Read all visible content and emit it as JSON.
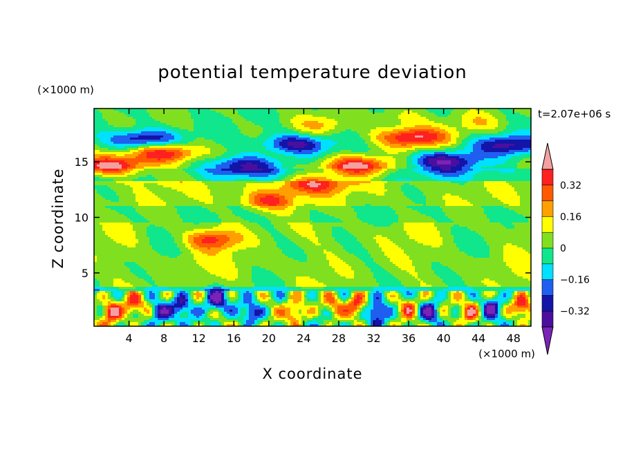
{
  "chart_data": {
    "type": "heatmap",
    "title": "potential temperature deviation",
    "xlabel": "X coordinate",
    "ylabel": "Z coordinate",
    "x_unit": "(×1000 m)",
    "y_unit": "(×1000 m)",
    "time_label": "t=2.07e+06 s",
    "xlim": [
      0,
      50
    ],
    "ylim": [
      0.2,
      19.8
    ],
    "x_ticks": [
      4,
      8,
      12,
      16,
      20,
      24,
      28,
      32,
      36,
      40,
      44,
      48
    ],
    "y_ticks": [
      5,
      10,
      15
    ],
    "colorbar": {
      "levels": [
        -0.4,
        -0.32,
        -0.24,
        -0.16,
        -0.08,
        0,
        0.08,
        0.16,
        0.24,
        0.32,
        0.4
      ],
      "tick_labels": [
        "0.32",
        "0.16",
        "0",
        "−0.16",
        "−0.32"
      ],
      "tick_values": [
        0.32,
        0.16,
        0,
        -0.16,
        -0.32
      ],
      "colors": [
        "#7b22b8",
        "#4a0f9e",
        "#1414a8",
        "#1e5ff0",
        "#00e0ff",
        "#10e68c",
        "#80e020",
        "#ffff00",
        "#ffa000",
        "#ff5a00",
        "#ff2020",
        "#f4a0a0"
      ],
      "extend": "both"
    },
    "features": [
      {
        "x": 5.5,
        "z": 17.0,
        "v": -0.36
      },
      {
        "x": 8.0,
        "z": 15.8,
        "v": 0.42
      },
      {
        "x": 2.0,
        "z": 14.6,
        "v": 0.42
      },
      {
        "x": 17.0,
        "z": 14.6,
        "v": -0.36
      },
      {
        "x": 23.0,
        "z": 16.6,
        "v": -0.33
      },
      {
        "x": 36.5,
        "z": 17.2,
        "v": 0.42
      },
      {
        "x": 40.0,
        "z": 15.0,
        "v": -0.38
      },
      {
        "x": 30.0,
        "z": 14.6,
        "v": 0.42
      },
      {
        "x": 47.5,
        "z": 16.5,
        "v": -0.34
      },
      {
        "x": 26.0,
        "z": 18.3,
        "v": 0.16
      },
      {
        "x": 44.0,
        "z": 18.5,
        "v": 0.12
      },
      {
        "x": 35.0,
        "z": 19.0,
        "v": 0.12
      },
      {
        "x": 8.0,
        "z": 13.5,
        "v": 0.1
      },
      {
        "x": 25.0,
        "z": 13.0,
        "v": 0.33
      },
      {
        "x": 20.0,
        "z": 11.5,
        "v": 0.3
      },
      {
        "x": 13.5,
        "z": 8.0,
        "v": 0.3
      },
      {
        "x": 10.0,
        "z": 6.0,
        "v": 0.05
      },
      {
        "x": 20.0,
        "z": 5.5,
        "v": 0.05
      },
      {
        "x": 33.0,
        "z": 8.5,
        "v": 0.05
      },
      {
        "x": 43.0,
        "z": 6.0,
        "v": 0.05
      },
      {
        "x": 2.0,
        "z": 1.5,
        "v": 0.4
      },
      {
        "x": 4.5,
        "z": 2.0,
        "v": 0.28
      },
      {
        "x": 7.5,
        "z": 1.5,
        "v": -0.35
      },
      {
        "x": 10.0,
        "z": 2.0,
        "v": -0.3
      },
      {
        "x": 14.0,
        "z": 2.5,
        "v": -0.36
      },
      {
        "x": 18.0,
        "z": 1.5,
        "v": -0.32
      },
      {
        "x": 23.0,
        "z": 1.5,
        "v": 0.3
      },
      {
        "x": 27.5,
        "z": 2.0,
        "v": 0.22
      },
      {
        "x": 30.0,
        "z": 2.0,
        "v": 0.42
      },
      {
        "x": 32.5,
        "z": 1.5,
        "v": -0.38
      },
      {
        "x": 36.0,
        "z": 2.0,
        "v": 0.28
      },
      {
        "x": 38.5,
        "z": 1.5,
        "v": -0.36
      },
      {
        "x": 43.0,
        "z": 1.5,
        "v": 0.3
      },
      {
        "x": 45.5,
        "z": 2.0,
        "v": -0.32
      },
      {
        "x": 49.0,
        "z": 2.0,
        "v": 0.42
      }
    ]
  }
}
